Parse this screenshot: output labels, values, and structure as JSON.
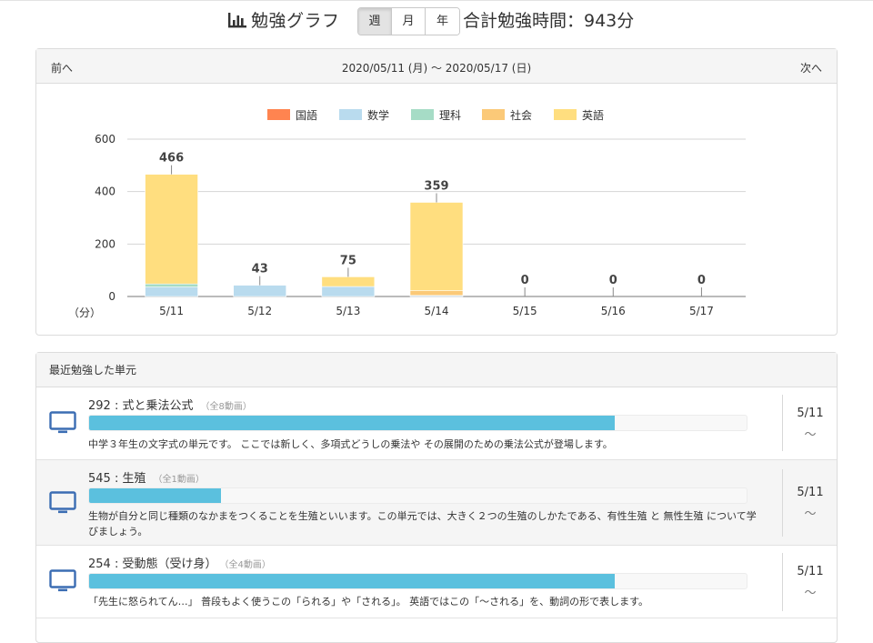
{
  "header": {
    "title": "勉強グラフ",
    "period_buttons": [
      "週",
      "月",
      "年"
    ],
    "active_period": "週",
    "total_label": "合計勉強時間：943分"
  },
  "chart_panel": {
    "prev_label": "前へ",
    "next_label": "次へ",
    "date_range": "2020/05/11 (月) 〜 2020/05/17 (日)"
  },
  "chart_data": {
    "type": "bar",
    "stacked": true,
    "categories": [
      "5/11",
      "5/12",
      "5/13",
      "5/14",
      "5/15",
      "5/16",
      "5/17"
    ],
    "series": [
      {
        "name": "国語",
        "color": "#ff8450",
        "values": [
          0,
          0,
          0,
          0,
          0,
          0,
          0
        ]
      },
      {
        "name": "数学",
        "color": "#b9dbee",
        "values": [
          36,
          43,
          38,
          4,
          0,
          0,
          0
        ]
      },
      {
        "name": "理科",
        "color": "#a6dcc6",
        "values": [
          12,
          0,
          0,
          0,
          0,
          0,
          0
        ]
      },
      {
        "name": "社会",
        "color": "#fbc978",
        "values": [
          0,
          0,
          0,
          18,
          0,
          0,
          0
        ]
      },
      {
        "name": "英語",
        "color": "#ffde7f",
        "values": [
          418,
          0,
          37,
          337,
          0,
          0,
          0
        ]
      }
    ],
    "totals": [
      466,
      43,
      75,
      359,
      0,
      0,
      0
    ],
    "total_labels": [
      "466",
      "43",
      "75",
      "359",
      "0",
      "0",
      "0"
    ],
    "ylim": [
      0,
      600
    ],
    "yticks": [
      0,
      200,
      400,
      600
    ],
    "ytick_labels": [
      "0",
      "200",
      "400",
      "600"
    ],
    "ylabel": "（分）",
    "legend_position": "top",
    "grid": true
  },
  "recent": {
    "title": "最近勉強した単元",
    "units": [
      {
        "title": "292 : 式と乗法公式",
        "count": "（全8動画）",
        "progress": 0.8,
        "description": "中学３年生の文字式の単元です。 ここでは新しく、多項式どうしの乗法や その展開のための乗法公式が登場します。",
        "date": "5/11",
        "tilde": "〜"
      },
      {
        "title": "545 : 生殖",
        "count": "（全1動画）",
        "progress": 0.2,
        "description": "生物が自分と同じ種類のなかまをつくることを生殖といいます。この単元では、大きく２つの生殖のしかたである、有性生殖 と 無性生殖 について学びましょう。",
        "date": "5/11",
        "tilde": "〜"
      },
      {
        "title": "254 : 受動態（受け身）",
        "count": "（全4動画）",
        "progress": 0.8,
        "description": "「先生に怒られてん…」 普段もよく使うこの「られる」や「される」。 英語ではこの「〜される」を、動詞の形で表します。",
        "date": "5/11",
        "tilde": "〜"
      }
    ]
  }
}
